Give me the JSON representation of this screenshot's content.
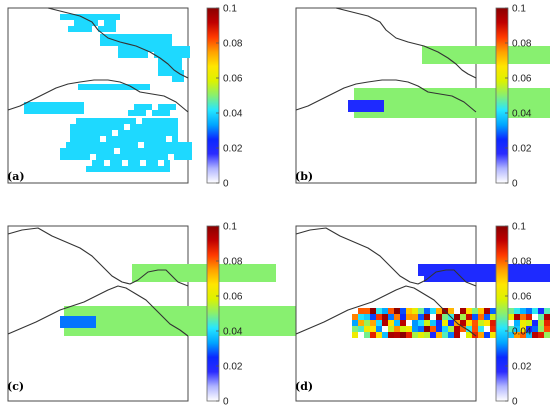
{
  "colormap": {
    "vmin": 0,
    "vmax": 0.1,
    "stops": [
      "#ffffff",
      "#b0b4ff",
      "#2b2bff",
      "#0a28ff",
      "#00a6ff",
      "#26e6ff",
      "#88f070",
      "#dcf200",
      "#ffe600",
      "#ffa000",
      "#ff3a00",
      "#c00000",
      "#8a0000"
    ]
  },
  "colorbar_ticks": [
    "0",
    "0.02",
    "0.04",
    "0.06",
    "0.08",
    "0.1"
  ],
  "chart_data": [
    {
      "type": "heatmap",
      "panel": "(a)",
      "color_range": [
        0,
        0.1
      ],
      "regions": [
        {
          "area": "north strip along upper river",
          "value": 0.04
        },
        {
          "area": "south strip along lower river",
          "value": 0.04
        },
        {
          "area": "large southern block",
          "value": 0.04
        }
      ]
    },
    {
      "type": "heatmap",
      "panel": "(b)",
      "color_range": [
        0,
        0.1
      ],
      "regions": [
        {
          "area": "north block",
          "value": 0.05
        },
        {
          "area": "south block",
          "value": 0.05
        },
        {
          "area": "south block west edge",
          "value": 0.02
        }
      ]
    },
    {
      "type": "heatmap",
      "panel": "(c)",
      "color_range": [
        0,
        0.1
      ],
      "regions": [
        {
          "area": "north block",
          "value": 0.05
        },
        {
          "area": "south block",
          "value": 0.05
        },
        {
          "area": "south block west edge",
          "value": 0.03
        }
      ]
    },
    {
      "type": "heatmap",
      "panel": "(d)",
      "color_range": [
        0,
        0.1
      ],
      "regions": [
        {
          "area": "north block",
          "value": 0.02
        },
        {
          "area": "south block",
          "value_range": [
            0.02,
            0.1
          ]
        }
      ]
    }
  ],
  "panel_labels": [
    "(a)",
    "(b)",
    "(c)",
    "(d)"
  ]
}
